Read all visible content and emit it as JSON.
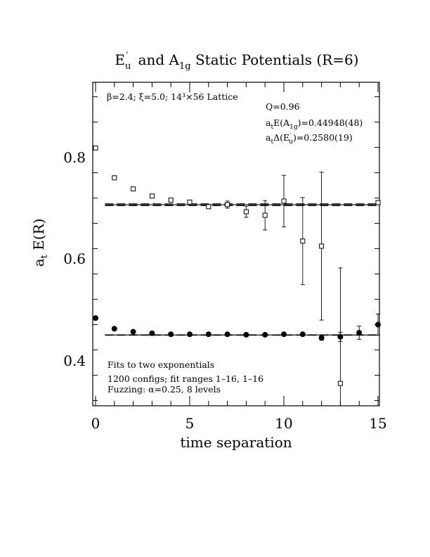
{
  "chart_data": {
    "type": "scatter",
    "title": "E′u  and A1g Static Potentials (R=6)",
    "xlabel": "time separation",
    "ylabel": "at E(R)",
    "xlim": [
      0,
      15
    ],
    "ylim": [
      0.31,
      0.95
    ],
    "x_ticks": [
      0,
      5,
      10,
      15
    ],
    "y_ticks": [
      0.4,
      0.6,
      0.8
    ],
    "x_tick_labels": [
      "0",
      "5",
      "10",
      "15"
    ],
    "y_tick_labels": [
      "0.4",
      "0.6",
      "0.8"
    ],
    "grid": false,
    "annotations": {
      "lattice": "β=2.4; ξ=5.0; 14³×56 Lattice",
      "q": "Q=0.96",
      "energy_a1g": "atE(A1g)=0.44948(48)",
      "delta_eu": "atΔ(E′u)=0.2580(19)",
      "fits_line1": "Fits to two exponentials",
      "fits_line2": "1200 configs; fit ranges 1–16, 1–16",
      "fits_line3": "Fuzzing: α=0.25, 8 levels"
    },
    "series": [
      {
        "marker": "open-square",
        "points": [
          {
            "x": 0,
            "y": 0.819,
            "err": 0
          },
          {
            "x": 1,
            "y": 0.76,
            "err": 0
          },
          {
            "x": 2,
            "y": 0.738,
            "err": 0
          },
          {
            "x": 3,
            "y": 0.724,
            "err": 0
          },
          {
            "x": 4,
            "y": 0.716,
            "err": 0.003
          },
          {
            "x": 5,
            "y": 0.712,
            "err": 0.004
          },
          {
            "x": 6,
            "y": 0.703,
            "err": 0.004
          },
          {
            "x": 7,
            "y": 0.707,
            "err": 0.007
          },
          {
            "x": 8,
            "y": 0.693,
            "err": 0.011
          },
          {
            "x": 9,
            "y": 0.686,
            "err": 0.029
          },
          {
            "x": 10,
            "y": 0.714,
            "err": 0.051
          },
          {
            "x": 11,
            "y": 0.635,
            "err": 0.086
          },
          {
            "x": 12,
            "y": 0.625,
            "err": 0.146
          },
          {
            "x": 13,
            "y": 0.354,
            "err": 0.228
          },
          {
            "x": 15,
            "y": 0.711,
            "err": 0.004
          }
        ]
      },
      {
        "marker": "filled-circle",
        "points": [
          {
            "x": 0,
            "y": 0.483,
            "err": 0
          },
          {
            "x": 1,
            "y": 0.462,
            "err": 0
          },
          {
            "x": 2,
            "y": 0.456,
            "err": 0
          },
          {
            "x": 3,
            "y": 0.453,
            "err": 0
          },
          {
            "x": 4,
            "y": 0.451,
            "err": 0
          },
          {
            "x": 5,
            "y": 0.451,
            "err": 0
          },
          {
            "x": 6,
            "y": 0.451,
            "err": 0
          },
          {
            "x": 7,
            "y": 0.451,
            "err": 0
          },
          {
            "x": 8,
            "y": 0.45,
            "err": 0
          },
          {
            "x": 9,
            "y": 0.45,
            "err": 0
          },
          {
            "x": 10,
            "y": 0.451,
            "err": 0.002
          },
          {
            "x": 11,
            "y": 0.451,
            "err": 0.003
          },
          {
            "x": 12,
            "y": 0.444,
            "err": 0.005
          },
          {
            "x": 13,
            "y": 0.446,
            "err": 0.009
          },
          {
            "x": 14,
            "y": 0.454,
            "err": 0.013
          },
          {
            "x": 15,
            "y": 0.47,
            "err": 0.021
          }
        ]
      }
    ],
    "fit_lines": [
      {
        "style": "solid",
        "y": 0.7068,
        "x_range": [
          0.5,
          15
        ]
      },
      {
        "style": "dashed",
        "y": 0.7086,
        "x_range": [
          0.5,
          15
        ]
      },
      {
        "style": "dashed",
        "y": 0.705,
        "x_range": [
          0.5,
          15
        ]
      },
      {
        "style": "solid",
        "y": 0.4495,
        "x_range": [
          0.5,
          15
        ]
      },
      {
        "style": "dashed",
        "y": 0.45,
        "x_range": [
          0.5,
          15
        ]
      },
      {
        "style": "dashed",
        "y": 0.449,
        "x_range": [
          0.5,
          15
        ]
      }
    ]
  }
}
